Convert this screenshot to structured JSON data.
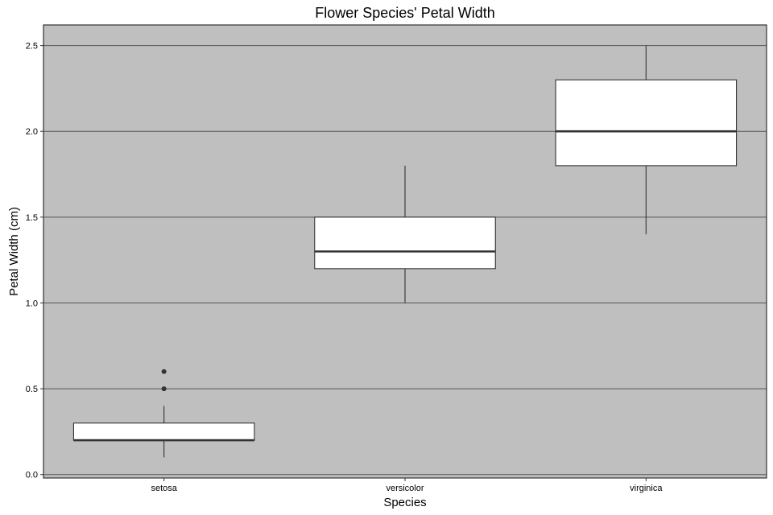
{
  "chart_data": {
    "type": "boxplot",
    "title": "Flower Species' Petal Width",
    "xlabel": "Species",
    "ylabel": "Petal Width (cm)",
    "categories": [
      "setosa",
      "versicolor",
      "virginica"
    ],
    "ylim": [
      -0.02,
      2.62
    ],
    "yticks": [
      0.0,
      0.5,
      1.0,
      1.5,
      2.0,
      2.5
    ],
    "ytick_labels": [
      "0.0",
      "0.5",
      "1.0",
      "1.5",
      "2.0",
      "2.5"
    ],
    "grid": true,
    "grid_axis": "y",
    "colors": {
      "panel_background": "#bfbfbf",
      "gridline": "#555555",
      "box_fill": "#ffffff",
      "box_stroke": "#333333",
      "outlier": "#333333"
    },
    "boxes": [
      {
        "category": "setosa",
        "whisker_low": 0.1,
        "q1": 0.2,
        "median": 0.2,
        "q3": 0.3,
        "whisker_high": 0.4,
        "outliers": [
          0.5,
          0.6
        ]
      },
      {
        "category": "versicolor",
        "whisker_low": 1.0,
        "q1": 1.2,
        "median": 1.3,
        "q3": 1.5,
        "whisker_high": 1.8,
        "outliers": []
      },
      {
        "category": "virginica",
        "whisker_low": 1.4,
        "q1": 1.8,
        "median": 2.0,
        "q3": 2.3,
        "whisker_high": 2.5,
        "outliers": []
      }
    ]
  }
}
